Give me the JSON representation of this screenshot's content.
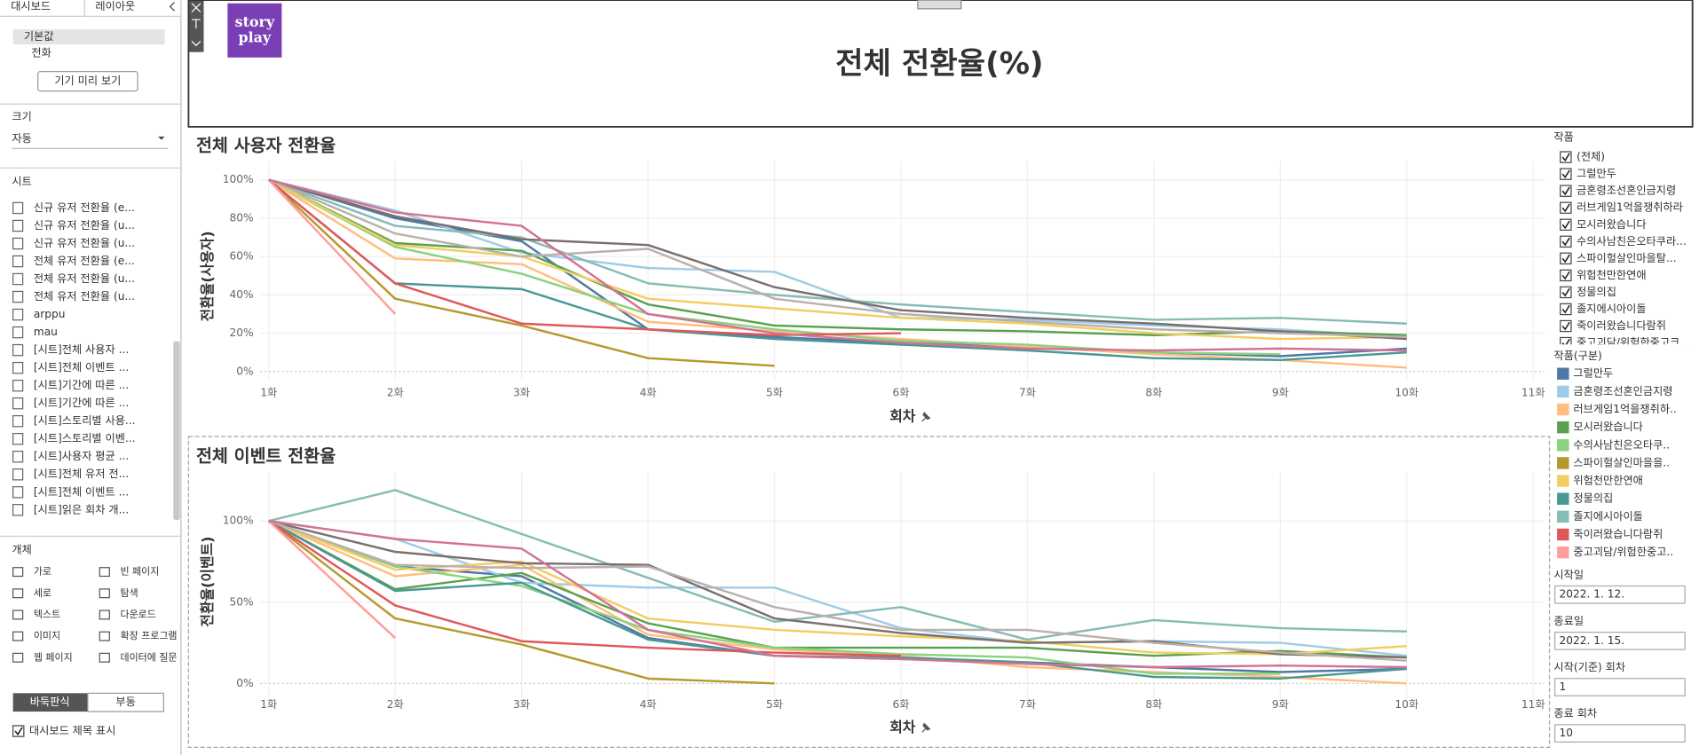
{
  "sidebar": {
    "tabs": [
      "대시보드",
      "레이아웃"
    ],
    "devices": [
      "기본값",
      "전화"
    ],
    "preview_button": "기기 미리 보기",
    "size_label": "크기",
    "size_value": "자동",
    "sheets_label": "시트",
    "sheets": [
      "신규 유저 전환율 (e...",
      "신규 유저 전환율 (u...",
      "신규 유저 전환율 (u...",
      "전체 유저 전환율 (e...",
      "전체 유저 전환율 (u...",
      "전체 유저 전환율 (u...",
      "arppu",
      "mau",
      "[시트]전체 사용자 ...",
      "[시트]전체 이벤트 ...",
      "[시트]기간에 따른 ...",
      "[시트]기간에 따른 ...",
      "[시트]스토리별 사용...",
      "[시트]스토리별 이벤...",
      "[시트]사용자 평균 ...",
      "[시트]전체 유저 전...",
      "[시트]전체 이벤트 ...",
      "[시트]읽은 회차 개..."
    ],
    "objects_label": "개체",
    "objects": [
      "가로",
      "빈 페이지",
      "세로",
      "탐색",
      "텍스트",
      "다운로드",
      "이미지",
      "확장 프로그램",
      "웹 페이지",
      "데이터에 질문"
    ],
    "layout_toggle": [
      "바둑판식",
      "부동"
    ],
    "show_title": "대시보드 제목 표시"
  },
  "header": {
    "logo": [
      "story",
      "play"
    ],
    "title": "전체 전환율(%)"
  },
  "filter": {
    "title": "작품",
    "items": [
      "(전체)",
      "그럴만두",
      "금혼령조선혼인금지령",
      "러브게임1억을쟁취하라",
      "모시러왔습니다",
      "수의사남친은오타쿠라...",
      "스파이헐살인마을탈...",
      "위험천만한연애",
      "정물의집",
      "졸지에시아이돌",
      "죽이러왔습니다람쥐",
      "중고괴담/위험한중고크..."
    ]
  },
  "legend": {
    "title": "작품(구분)"
  },
  "parameters": [
    {
      "label": "시작일",
      "value": "2022. 1. 12."
    },
    {
      "label": "종료일",
      "value": "2022. 1. 15."
    },
    {
      "label": "시작(기준) 회차",
      "value": "1"
    },
    {
      "label": "종료 회차",
      "value": "10"
    }
  ],
  "chart_data": [
    {
      "type": "line",
      "title": "전체 사용자 전환율",
      "xlabel": "회차",
      "ylabel": "전환율(사용자)",
      "categories": [
        "1화",
        "2화",
        "3화",
        "4화",
        "5화",
        "6화",
        "7화",
        "8화",
        "9화",
        "10화",
        "11화"
      ],
      "ylim": [
        -5,
        110
      ],
      "yticks": [
        {
          "value": 0,
          "label": "0%"
        },
        {
          "value": 20,
          "label": "20%"
        },
        {
          "value": 40,
          "label": "40%"
        },
        {
          "value": 60,
          "label": "60%"
        },
        {
          "value": 80,
          "label": "80%"
        },
        {
          "value": 100,
          "label": "100%"
        }
      ],
      "grid": true,
      "series": [
        {
          "name": "그럴만두",
          "color": "#4e79a7",
          "values": [
            100,
            80,
            68,
            22,
            18,
            15,
            13,
            10,
            8,
            12,
            null
          ]
        },
        {
          "name": "금혼령조선혼인금지령",
          "color": "#a0cbe8",
          "values": [
            100,
            84,
            62,
            54,
            52,
            28,
            27,
            24,
            22,
            18,
            null
          ]
        },
        {
          "name": "러브게임1억을쟁취하..",
          "color": "#ffbe7d",
          "values": [
            100,
            59,
            56,
            26,
            21,
            17,
            13,
            9,
            6,
            2,
            null
          ]
        },
        {
          "name": "모시러왔습니다",
          "color": "#59a14f",
          "values": [
            100,
            67,
            63,
            35,
            24,
            22,
            21,
            19,
            21,
            19,
            null
          ]
        },
        {
          "name": "수의사남친은오타쿠..",
          "color": "#8cd17d",
          "values": [
            100,
            65,
            51,
            30,
            22,
            16,
            14,
            10,
            9,
            null,
            null
          ]
        },
        {
          "name": "스파이헐살인마을을..",
          "color": "#b6992d",
          "values": [
            100,
            38,
            24,
            7,
            3,
            null,
            null,
            null,
            null,
            null,
            null
          ]
        },
        {
          "name": "위험천만한연애",
          "color": "#f1ce63",
          "values": [
            100,
            66,
            60,
            38,
            33,
            28,
            25,
            20,
            17,
            18,
            null
          ]
        },
        {
          "name": "정물의집",
          "color": "#499894",
          "values": [
            100,
            46,
            43,
            22,
            17,
            14,
            11,
            7,
            6,
            10,
            null
          ]
        },
        {
          "name": "졸지에시아이돌",
          "color": "#86bcb6",
          "values": [
            100,
            76,
            70,
            46,
            40,
            35,
            31,
            27,
            28,
            25,
            null
          ]
        },
        {
          "name": "죽이러왔습니다람쥐",
          "color": "#e15759",
          "values": [
            100,
            46,
            25,
            22,
            19,
            20,
            null,
            null,
            null,
            null,
            null
          ]
        },
        {
          "name": "중고괴담/위험한중고..",
          "color": "#ff9d9a",
          "values": [
            100,
            30,
            null,
            null,
            null,
            null,
            null,
            null,
            null,
            null,
            null
          ]
        },
        {
          "color": "#79706e",
          "values": [
            100,
            81,
            69,
            66,
            44,
            32,
            28,
            25,
            21,
            17,
            null
          ]
        },
        {
          "color": "#bab0ac",
          "values": [
            100,
            72,
            60,
            64,
            38,
            30,
            26,
            22,
            20,
            18,
            null
          ]
        },
        {
          "color": "#d37295",
          "values": [
            100,
            83,
            76,
            30,
            20,
            15,
            12,
            11,
            12,
            11,
            null
          ]
        }
      ]
    },
    {
      "type": "line",
      "title": "전체 이벤트 전환율",
      "xlabel": "회차",
      "ylabel": "전환율(이벤트)",
      "categories": [
        "1화",
        "2화",
        "3화",
        "4화",
        "5화",
        "6화",
        "7화",
        "8화",
        "9화",
        "10화",
        "11화"
      ],
      "ylim": [
        -10,
        130
      ],
      "yticks": [
        {
          "value": 0,
          "label": "0%"
        },
        {
          "value": 50,
          "label": "50%"
        },
        {
          "value": 100,
          "label": "100%"
        }
      ],
      "grid": true,
      "series": [
        {
          "color": "#4e79a7",
          "values": [
            100,
            72,
            66,
            28,
            17,
            15,
            13,
            10,
            7,
            9,
            null
          ]
        },
        {
          "color": "#a0cbe8",
          "values": [
            100,
            89,
            62,
            59,
            59,
            34,
            25,
            26,
            25,
            17,
            null
          ]
        },
        {
          "color": "#ffbe7d",
          "values": [
            100,
            66,
            73,
            30,
            21,
            17,
            10,
            7,
            4,
            0,
            null
          ]
        },
        {
          "color": "#59a14f",
          "values": [
            100,
            58,
            68,
            37,
            22,
            22,
            22,
            17,
            20,
            16,
            null
          ]
        },
        {
          "color": "#8cd17d",
          "values": [
            100,
            72,
            60,
            33,
            22,
            18,
            16,
            6,
            6,
            null,
            null
          ]
        },
        {
          "color": "#b6992d",
          "values": [
            100,
            40,
            24,
            3,
            0,
            null,
            null,
            null,
            null,
            null,
            null
          ]
        },
        {
          "color": "#f1ce63",
          "values": [
            100,
            70,
            75,
            40,
            33,
            29,
            26,
            19,
            18,
            23,
            null
          ]
        },
        {
          "color": "#499894",
          "values": [
            100,
            57,
            62,
            27,
            17,
            16,
            13,
            4,
            3,
            9,
            null
          ]
        },
        {
          "color": "#86bcb6",
          "values": [
            100,
            119,
            92,
            65,
            38,
            47,
            27,
            39,
            34,
            32,
            null
          ]
        },
        {
          "color": "#e15759",
          "values": [
            100,
            48,
            26,
            22,
            19,
            17,
            null,
            null,
            null,
            null,
            null
          ]
        },
        {
          "color": "#ff9d9a",
          "values": [
            100,
            28,
            null,
            null,
            null,
            null,
            null,
            null,
            null,
            null,
            null
          ]
        },
        {
          "color": "#79706e",
          "values": [
            100,
            81,
            74,
            73,
            40,
            31,
            25,
            26,
            18,
            16,
            null
          ]
        },
        {
          "color": "#bab0ac",
          "values": [
            100,
            73,
            71,
            72,
            47,
            33,
            33,
            25,
            19,
            14,
            null
          ]
        },
        {
          "color": "#d37295",
          "values": [
            100,
            89,
            83,
            33,
            17,
            15,
            12,
            10,
            11,
            10,
            null
          ]
        }
      ]
    }
  ]
}
